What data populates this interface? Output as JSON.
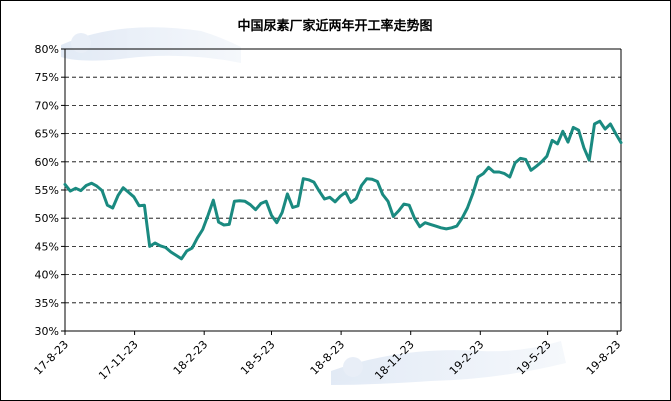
{
  "chart_data": {
    "type": "line",
    "title": "中国尿素厂家近两年开工率走势图",
    "xlabel": "",
    "ylabel": "",
    "ylim": [
      30,
      80
    ],
    "yticks": [
      "30%",
      "35%",
      "40%",
      "45%",
      "50%",
      "55%",
      "60%",
      "65%",
      "70%",
      "75%",
      "80%"
    ],
    "xticks": [
      "17-8-23",
      "17-11-23",
      "18-2-23",
      "18-5-23",
      "18-8-23",
      "18-11-23",
      "19-2-23",
      "19-5-23",
      "19-8-23"
    ],
    "grid": true,
    "line_color": "#1a8a80",
    "x": [
      "2017-08-23",
      "2017-08-30",
      "2017-09-06",
      "2017-09-13",
      "2017-09-20",
      "2017-09-27",
      "2017-10-04",
      "2017-10-11",
      "2017-10-18",
      "2017-10-25",
      "2017-11-01",
      "2017-11-08",
      "2017-11-15",
      "2017-11-22",
      "2017-11-29",
      "2017-12-06",
      "2017-12-13",
      "2017-12-20",
      "2017-12-27",
      "2018-01-03",
      "2018-01-10",
      "2018-01-17",
      "2018-01-24",
      "2018-01-31",
      "2018-02-07",
      "2018-02-14",
      "2018-02-21",
      "2018-02-28",
      "2018-03-07",
      "2018-03-14",
      "2018-03-21",
      "2018-03-28",
      "2018-04-04",
      "2018-04-11",
      "2018-04-18",
      "2018-04-25",
      "2018-05-02",
      "2018-05-09",
      "2018-05-16",
      "2018-05-23",
      "2018-05-30",
      "2018-06-06",
      "2018-06-13",
      "2018-06-20",
      "2018-06-27",
      "2018-07-04",
      "2018-07-11",
      "2018-07-18",
      "2018-07-25",
      "2018-08-01",
      "2018-08-08",
      "2018-08-15",
      "2018-08-22",
      "2018-08-29",
      "2018-09-05",
      "2018-09-12",
      "2018-09-19",
      "2018-09-26",
      "2018-10-03",
      "2018-10-10",
      "2018-10-17",
      "2018-10-24",
      "2018-10-31",
      "2018-11-07",
      "2018-11-14",
      "2018-11-21",
      "2018-11-28",
      "2018-12-05",
      "2018-12-12",
      "2018-12-19",
      "2018-12-26",
      "2019-01-02",
      "2019-01-09",
      "2019-01-16",
      "2019-01-23",
      "2019-01-30",
      "2019-02-06",
      "2019-02-13",
      "2019-02-20",
      "2019-02-27",
      "2019-03-06",
      "2019-03-13",
      "2019-03-20",
      "2019-03-27",
      "2019-04-03",
      "2019-04-10",
      "2019-04-17",
      "2019-04-24",
      "2019-05-01",
      "2019-05-08",
      "2019-05-15",
      "2019-05-22",
      "2019-05-29",
      "2019-06-05",
      "2019-06-12",
      "2019-06-19",
      "2019-06-26",
      "2019-07-03",
      "2019-07-10",
      "2019-07-17",
      "2019-07-24",
      "2019-07-31",
      "2019-08-07",
      "2019-08-14",
      "2019-08-21",
      "2019-08-28"
    ],
    "series": [
      {
        "name": "",
        "values": [
          56.0,
          54.8,
          55.3,
          54.9,
          55.8,
          56.2,
          55.7,
          54.9,
          52.3,
          51.8,
          54.0,
          55.4,
          54.6,
          53.8,
          52.2,
          52.3,
          45.0,
          45.6,
          45.1,
          44.8,
          44.0,
          43.4,
          42.8,
          44.2,
          44.7,
          46.5,
          48.0,
          50.5,
          53.2,
          49.3,
          48.8,
          48.9,
          53.0,
          53.1,
          53.0,
          52.4,
          51.5,
          52.6,
          53.0,
          50.5,
          49.2,
          51.0,
          54.3,
          51.9,
          52.2,
          57.0,
          56.8,
          56.4,
          54.8,
          53.4,
          53.7,
          52.9,
          53.9,
          54.6,
          52.8,
          53.5,
          55.8,
          57.0,
          56.9,
          56.5,
          54.2,
          53.0,
          50.3,
          51.3,
          52.5,
          52.3,
          50.0,
          48.5,
          49.2,
          48.9,
          48.6,
          48.3,
          48.1,
          48.3,
          48.6,
          50.0,
          51.8,
          54.3,
          57.3,
          57.9,
          59.0,
          58.2,
          58.2,
          57.9,
          57.3,
          59.8,
          60.6,
          60.4,
          58.5,
          59.2,
          60.0,
          61.0,
          63.8,
          63.2,
          65.4,
          63.5,
          66.1,
          65.6,
          62.5,
          60.3,
          66.7,
          67.2,
          65.8,
          66.7,
          65.0,
          63.4
        ]
      }
    ]
  }
}
